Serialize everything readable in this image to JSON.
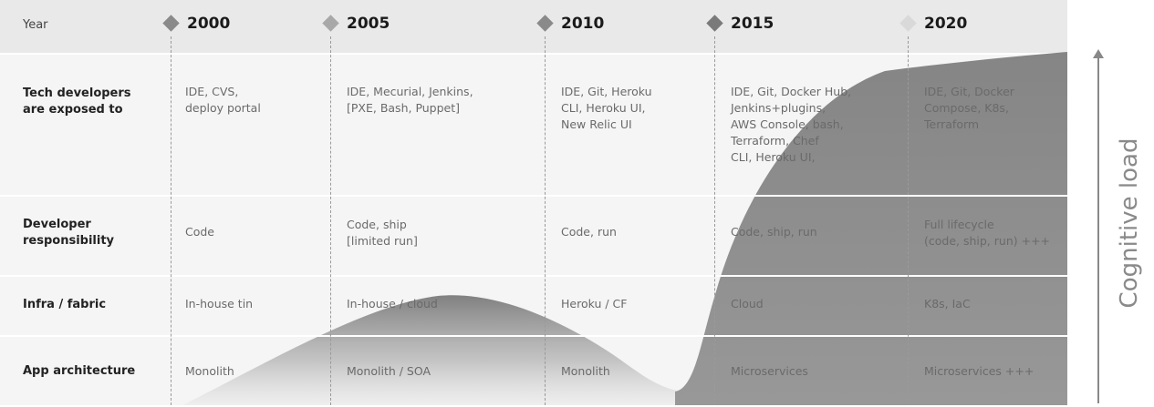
{
  "header": {
    "year_label": "Year",
    "years": [
      "2000",
      "2005",
      "2010",
      "2015",
      "2020"
    ]
  },
  "rows": [
    {
      "label": "Tech developers\nare exposed to",
      "cells": [
        "IDE, CVS,\ndeploy portal",
        "IDE, Mecurial, Jenkins,\n[PXE, Bash, Puppet]",
        "IDE, Git, Heroku\nCLI, Heroku UI,\nNew Relic UI",
        "IDE, Git, Docker Hub,\nJenkins+plugins,\nAWS Console, bash,\nTerraform, Chef\nCLI, Heroku UI,",
        "IDE, Git, Docker\nCompose, K8s,\nTerraform"
      ]
    },
    {
      "label": "Developer\nresponsibility",
      "cells": [
        "Code",
        "Code, ship\n[limited run]",
        "Code, run",
        "Code, ship, run",
        "Full lifecycle\n(code, ship, run) +++"
      ]
    },
    {
      "label": "Infra / fabric",
      "cells": [
        "In-house tin",
        "In-house / cloud",
        "Heroku / CF",
        "Cloud",
        "K8s, IaC"
      ]
    },
    {
      "label": "App architecture",
      "cells": [
        "Monolith",
        "Monolith / SOA",
        "Monolith",
        "Microservices",
        "Microservices +++"
      ]
    }
  ],
  "axis": {
    "label": "Cognitive load"
  },
  "colors": {
    "header_bg": "#e9e9e9",
    "row_bg": "#f5f5f5",
    "curve_fill": "#8c8c8c",
    "diamond": "#8a8a8a",
    "diamond_light": "#d9d9d9"
  }
}
